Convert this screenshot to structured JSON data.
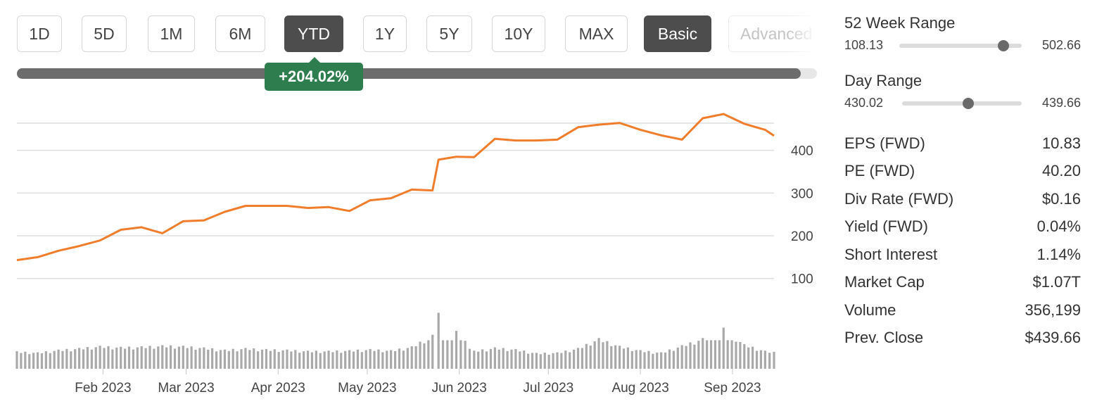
{
  "range_buttons": [
    {
      "label": "1D",
      "active": false
    },
    {
      "label": "5D",
      "active": false
    },
    {
      "label": "1M",
      "active": false
    },
    {
      "label": "6M",
      "active": false
    },
    {
      "label": "YTD",
      "active": true
    },
    {
      "label": "1Y",
      "active": false
    },
    {
      "label": "5Y",
      "active": false
    },
    {
      "label": "10Y",
      "active": false
    },
    {
      "label": "MAX",
      "active": false
    }
  ],
  "view_buttons": {
    "basic": "Basic",
    "advanced": "Advanced"
  },
  "performance": {
    "label": "+204.02%",
    "fraction": 0.98
  },
  "stats": {
    "week52": {
      "title": "52 Week Range",
      "low": "108.13",
      "high": "502.66",
      "position": 0.85
    },
    "day": {
      "title": "Day Range",
      "low": "430.02",
      "high": "439.66",
      "position": 0.55
    },
    "rows": [
      {
        "label": "EPS (FWD)",
        "value": "10.83"
      },
      {
        "label": "PE (FWD)",
        "value": "40.20"
      },
      {
        "label": "Div Rate (FWD)",
        "value": "$0.16"
      },
      {
        "label": "Yield (FWD)",
        "value": "0.04%"
      },
      {
        "label": "Short Interest",
        "value": "1.14%"
      },
      {
        "label": "Market Cap",
        "value": "$1.07T"
      },
      {
        "label": "Volume",
        "value": "356,199"
      },
      {
        "label": "Prev. Close",
        "value": "$439.66"
      }
    ]
  },
  "chart_data": {
    "type": "line",
    "line_color": "#f07d2c",
    "volume_color": "#a9a9a9",
    "ylim": [
      60,
      480
    ],
    "yticks": [
      100,
      200,
      300,
      400
    ],
    "grid": true,
    "x_ticks": [
      "Feb 2023",
      "Mar 2023",
      "Apr 2023",
      "May 2023",
      "Jun 2023",
      "Jul 2023",
      "Aug 2023",
      "Sep 2023"
    ],
    "x": [
      "2023-01-03",
      "2023-01-10",
      "2023-01-17",
      "2023-01-24",
      "2023-01-31",
      "2023-02-07",
      "2023-02-14",
      "2023-02-21",
      "2023-02-28",
      "2023-03-07",
      "2023-03-14",
      "2023-03-21",
      "2023-03-28",
      "2023-04-04",
      "2023-04-11",
      "2023-04-18",
      "2023-04-25",
      "2023-05-02",
      "2023-05-09",
      "2023-05-16",
      "2023-05-23",
      "2023-05-25",
      "2023-05-31",
      "2023-06-06",
      "2023-06-13",
      "2023-06-20",
      "2023-06-27",
      "2023-07-04",
      "2023-07-11",
      "2023-07-18",
      "2023-07-25",
      "2023-08-01",
      "2023-08-08",
      "2023-08-15",
      "2023-08-22",
      "2023-08-29",
      "2023-09-05",
      "2023-09-12",
      "2023-09-15"
    ],
    "price": [
      143,
      150,
      165,
      176,
      189,
      214,
      220,
      206,
      234,
      236,
      256,
      270,
      270,
      270,
      265,
      267,
      258,
      283,
      288,
      308,
      306,
      378,
      385,
      384,
      427,
      423,
      423,
      425,
      454,
      460,
      464,
      448,
      435,
      425,
      475,
      485,
      462,
      448,
      434
    ],
    "volume": [
      3.2,
      3.0,
      3.5,
      3.8,
      4.2,
      4.0,
      4.1,
      4.3,
      4.2,
      3.9,
      3.5,
      3.8,
      3.6,
      3.5,
      3.3,
      3.3,
      3.4,
      3.6,
      3.4,
      4.1,
      6.2,
      10.2,
      6.9,
      3.3,
      3.9,
      3.6,
      2.9,
      3.0,
      3.8,
      5.6,
      4.2,
      3.4,
      3.0,
      4.3,
      5.6,
      7.5,
      4.5,
      3.3,
      3.1
    ]
  }
}
